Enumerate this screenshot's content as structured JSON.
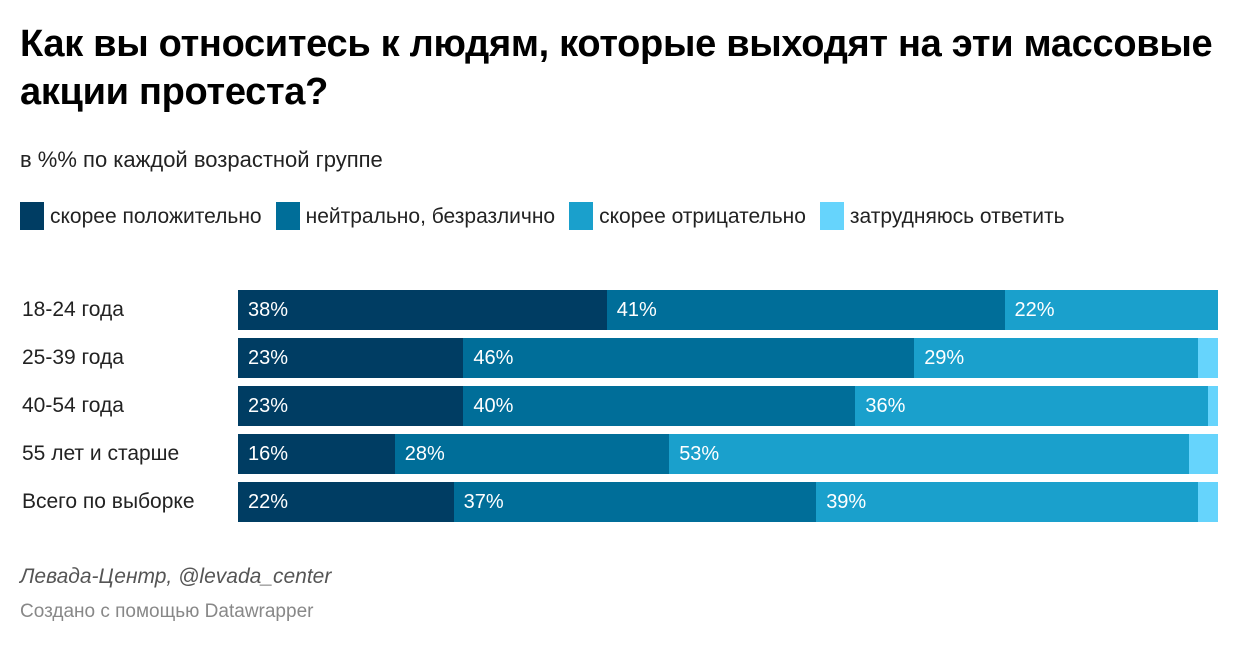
{
  "title": "Как вы относитесь к людям, которые выходят на эти массовые акции протеста?",
  "subtitle": "в %% по каждой возрастной группе",
  "source": "Левада-Центр, @levada_center",
  "credit": "Создано с помощью Datawrapper",
  "chart_data": {
    "type": "bar",
    "orientation": "horizontal",
    "stacked": true,
    "title": "Как вы относитесь к людям, которые выходят на эти массовые акции протеста?",
    "subtitle": "в %% по каждой возрастной группе",
    "categories": [
      "18-24 года",
      "25-39 года",
      "40-54 года",
      "55 лет и старше",
      "Всего по выборке"
    ],
    "series": [
      {
        "name": "скорее положительно",
        "color": "#003d63",
        "values": [
          38,
          23,
          23,
          16,
          22
        ],
        "labels": [
          "38%",
          "23%",
          "23%",
          "16%",
          "22%"
        ]
      },
      {
        "name": "нейтрально, безразлично",
        "color": "#006e99",
        "values": [
          41,
          46,
          40,
          28,
          37
        ],
        "labels": [
          "41%",
          "46%",
          "40%",
          "28%",
          "37%"
        ]
      },
      {
        "name": "скорее отрицательно",
        "color": "#1aa0cc",
        "values": [
          22,
          29,
          36,
          53,
          39
        ],
        "labels": [
          "22%",
          "29%",
          "36%",
          "53%",
          "39%"
        ]
      },
      {
        "name": "затрудняюсь ответить",
        "color": "#66d4fc",
        "values": [
          0,
          2,
          1,
          3,
          2
        ],
        "labels": [
          "",
          "",
          "",
          "",
          ""
        ]
      }
    ],
    "legend": {
      "position": "top-left"
    },
    "xlim": [
      0,
      100
    ]
  }
}
